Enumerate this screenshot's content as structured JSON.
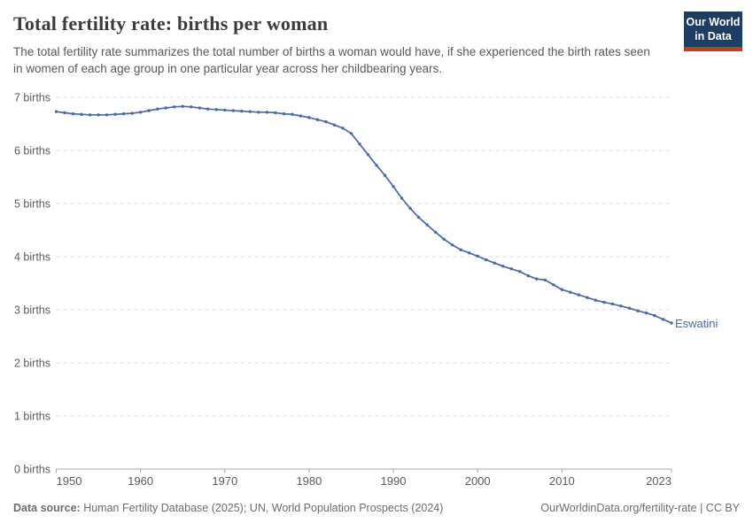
{
  "header": {
    "title": "Total fertility rate: births per woman",
    "subtitle": "The total fertility rate summarizes the total number of births a woman would have, if she experienced the birth rates seen in women of each age group in one particular year across her childbearing years.",
    "logo": {
      "line1": "Our World",
      "line2": "in Data"
    }
  },
  "chart_data": {
    "type": "line",
    "title": "Total fertility rate: births per woman",
    "entity_label": "Eswatini",
    "xlabel": "",
    "ylabel": "births",
    "ylim": [
      0,
      7
    ],
    "xlim": [
      1950,
      2023
    ],
    "grid": "horizontal-dashed",
    "legend_position": "end-of-line-label",
    "ytick_labels": [
      "0 births",
      "1 births",
      "2 births",
      "3 births",
      "4 births",
      "5 births",
      "6 births",
      "7 births"
    ],
    "xticks": [
      1950,
      1960,
      1970,
      1980,
      1990,
      2000,
      2010,
      2023
    ],
    "series": [
      {
        "name": "Eswatini",
        "x": [
          1950,
          1951,
          1952,
          1953,
          1954,
          1955,
          1956,
          1957,
          1958,
          1959,
          1960,
          1961,
          1962,
          1963,
          1964,
          1965,
          1966,
          1967,
          1968,
          1969,
          1970,
          1971,
          1972,
          1973,
          1974,
          1975,
          1976,
          1977,
          1978,
          1979,
          1980,
          1981,
          1982,
          1983,
          1984,
          1985,
          1986,
          1987,
          1988,
          1989,
          1990,
          1991,
          1992,
          1993,
          1994,
          1995,
          1996,
          1997,
          1998,
          1999,
          2000,
          2001,
          2002,
          2003,
          2004,
          2005,
          2006,
          2007,
          2008,
          2009,
          2010,
          2011,
          2012,
          2013,
          2014,
          2015,
          2016,
          2017,
          2018,
          2019,
          2020,
          2021,
          2022,
          2023
        ],
        "values": [
          6.73,
          6.71,
          6.69,
          6.68,
          6.67,
          6.67,
          6.67,
          6.68,
          6.69,
          6.7,
          6.72,
          6.75,
          6.78,
          6.8,
          6.82,
          6.83,
          6.82,
          6.8,
          6.78,
          6.77,
          6.76,
          6.75,
          6.74,
          6.73,
          6.72,
          6.72,
          6.71,
          6.69,
          6.68,
          6.65,
          6.62,
          6.58,
          6.54,
          6.48,
          6.42,
          6.32,
          6.12,
          5.92,
          5.72,
          5.53,
          5.32,
          5.1,
          4.91,
          4.74,
          4.6,
          4.46,
          4.33,
          4.22,
          4.13,
          4.07,
          4.01,
          3.94,
          3.88,
          3.82,
          3.77,
          3.72,
          3.64,
          3.58,
          3.56,
          3.47,
          3.38,
          3.33,
          3.28,
          3.23,
          3.18,
          3.14,
          3.11,
          3.07,
          3.03,
          2.98,
          2.94,
          2.89,
          2.82,
          2.75
        ]
      }
    ]
  },
  "footer": {
    "source_label": "Data source:",
    "source_text": " Human Fertility Database (2025); UN, World Population Prospects (2024)",
    "credit": "OurWorldinData.org/fertility-rate | CC BY"
  },
  "colors": {
    "line": "#4c6a9c",
    "gridline": "#d9d9d9",
    "axis": "#a8a8a8",
    "tick_text": "#5b5b5b",
    "logo_navy": "#1d3d63",
    "logo_red": "#c4392e"
  }
}
